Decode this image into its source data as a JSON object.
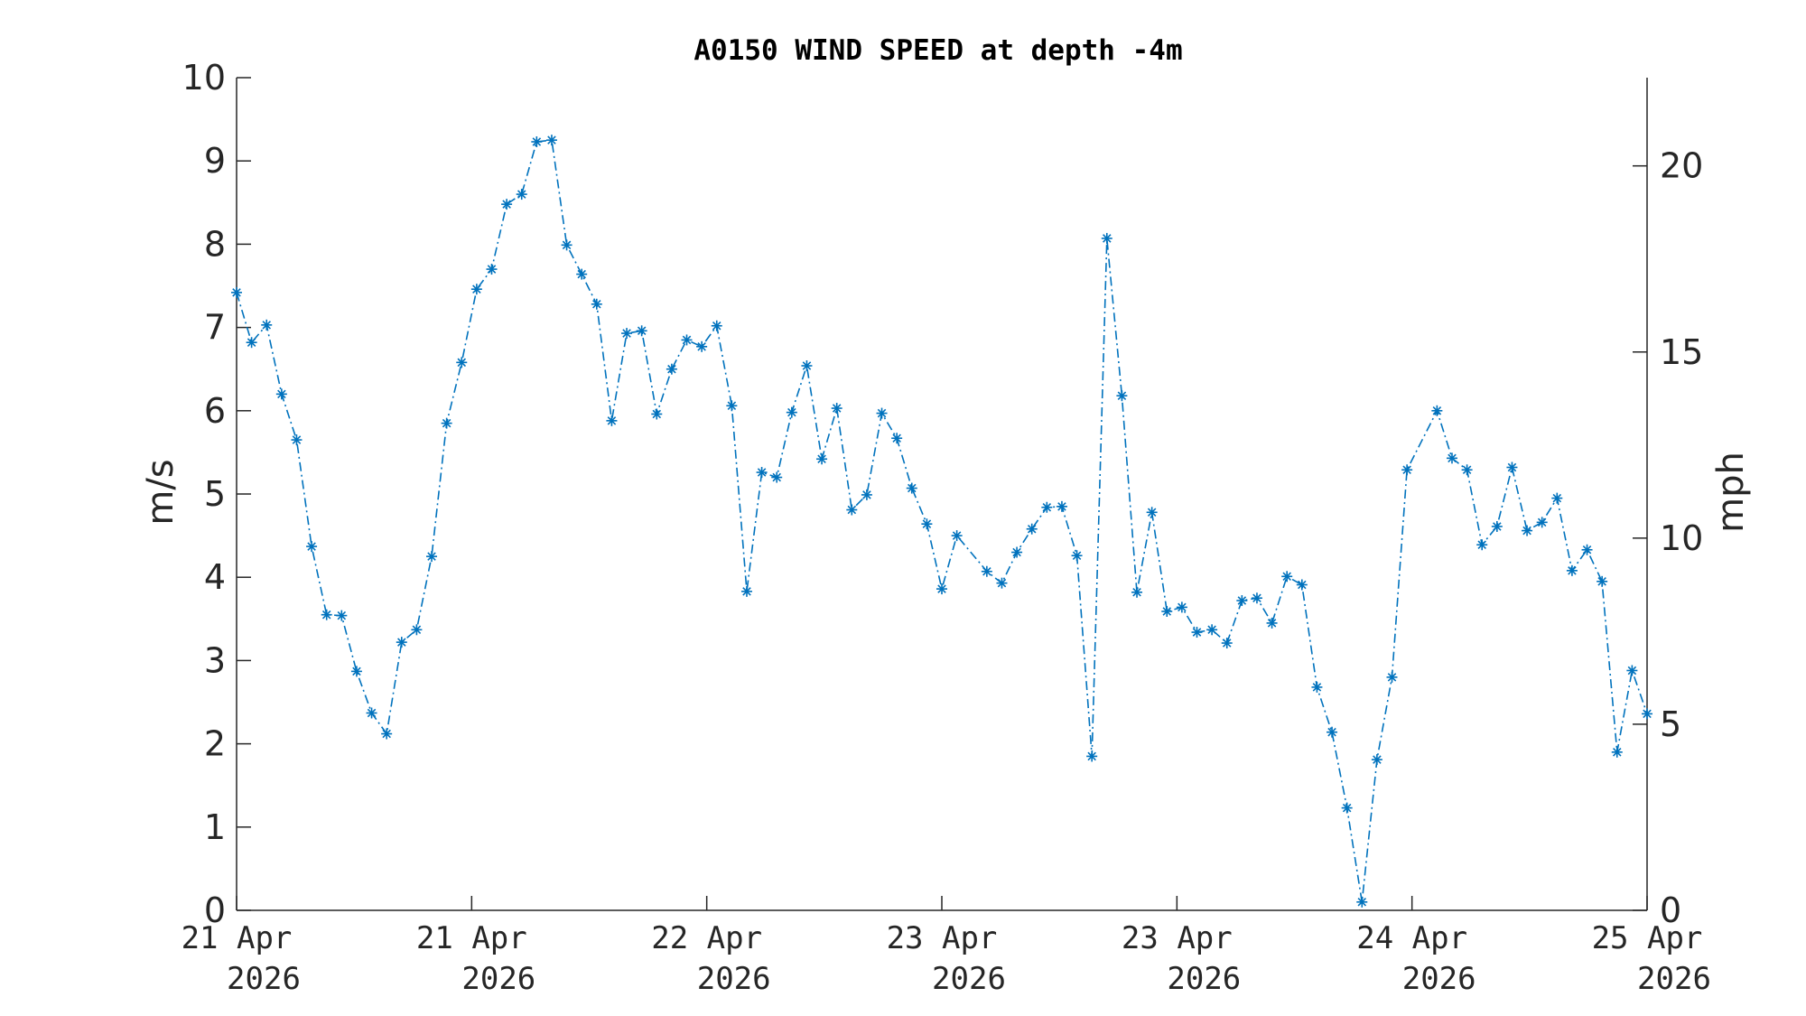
{
  "chart_data": {
    "type": "line",
    "title": "A0150 WIND SPEED at depth -4m",
    "ylabel": "m/s",
    "y2label": "mph",
    "ylim": [
      0,
      10
    ],
    "y2lim": [
      0,
      22.37
    ],
    "yticks": [
      "0",
      "1",
      "2",
      "3",
      "4",
      "5",
      "6",
      "7",
      "8",
      "9",
      "10"
    ],
    "y2ticks": [
      "0",
      "5",
      "10",
      "15",
      "20"
    ],
    "y2tick_values": [
      0,
      5,
      10,
      15,
      20
    ],
    "xlim_hours": [
      0,
      96
    ],
    "xtick_hours": [
      0,
      16,
      32,
      48,
      64,
      80,
      96
    ],
    "xticks": [
      {
        "line1": "21 Apr",
        "line2": "2026"
      },
      {
        "line1": "21 Apr",
        "line2": "2026"
      },
      {
        "line1": "22 Apr",
        "line2": "2026"
      },
      {
        "line1": "23 Apr",
        "line2": "2026"
      },
      {
        "line1": "23 Apr",
        "line2": "2026"
      },
      {
        "line1": "24 Apr",
        "line2": "2026"
      },
      {
        "line1": "25 Apr",
        "line2": "2026"
      }
    ],
    "line_style": "dash-dot",
    "marker": "asterisk",
    "color": "#0072BD",
    "series": [
      {
        "values": [
          7.42,
          6.82,
          7.03,
          6.2,
          5.65,
          4.37,
          3.55,
          3.54,
          2.87,
          2.37,
          2.12,
          3.22,
          3.37,
          4.25,
          5.85,
          6.58,
          7.46,
          7.7,
          8.48,
          8.6,
          9.23,
          9.25,
          7.99,
          7.64,
          7.28,
          5.88,
          6.93,
          6.96,
          5.96,
          6.5,
          6.85,
          6.77,
          7.02,
          6.06,
          3.83,
          5.26,
          5.2,
          5.98,
          6.54,
          5.42,
          6.03,
          4.81,
          4.99,
          5.97,
          5.67,
          5.07,
          4.64,
          3.86,
          4.5,
          null,
          4.07,
          3.93,
          4.3,
          4.58,
          4.84,
          4.85,
          4.26,
          1.85,
          8.07,
          6.18,
          3.82,
          4.78,
          3.59,
          3.64,
          3.34,
          3.37,
          3.21,
          3.72,
          3.75,
          3.45,
          4.01,
          3.91,
          2.68,
          2.14,
          1.23,
          0.1,
          1.81,
          2.8,
          5.29,
          null,
          6.0,
          5.43,
          5.29,
          4.39,
          4.61,
          5.32,
          4.56,
          4.66,
          4.95,
          4.08,
          4.33,
          3.95,
          1.9,
          2.88,
          2.36
        ]
      }
    ]
  }
}
